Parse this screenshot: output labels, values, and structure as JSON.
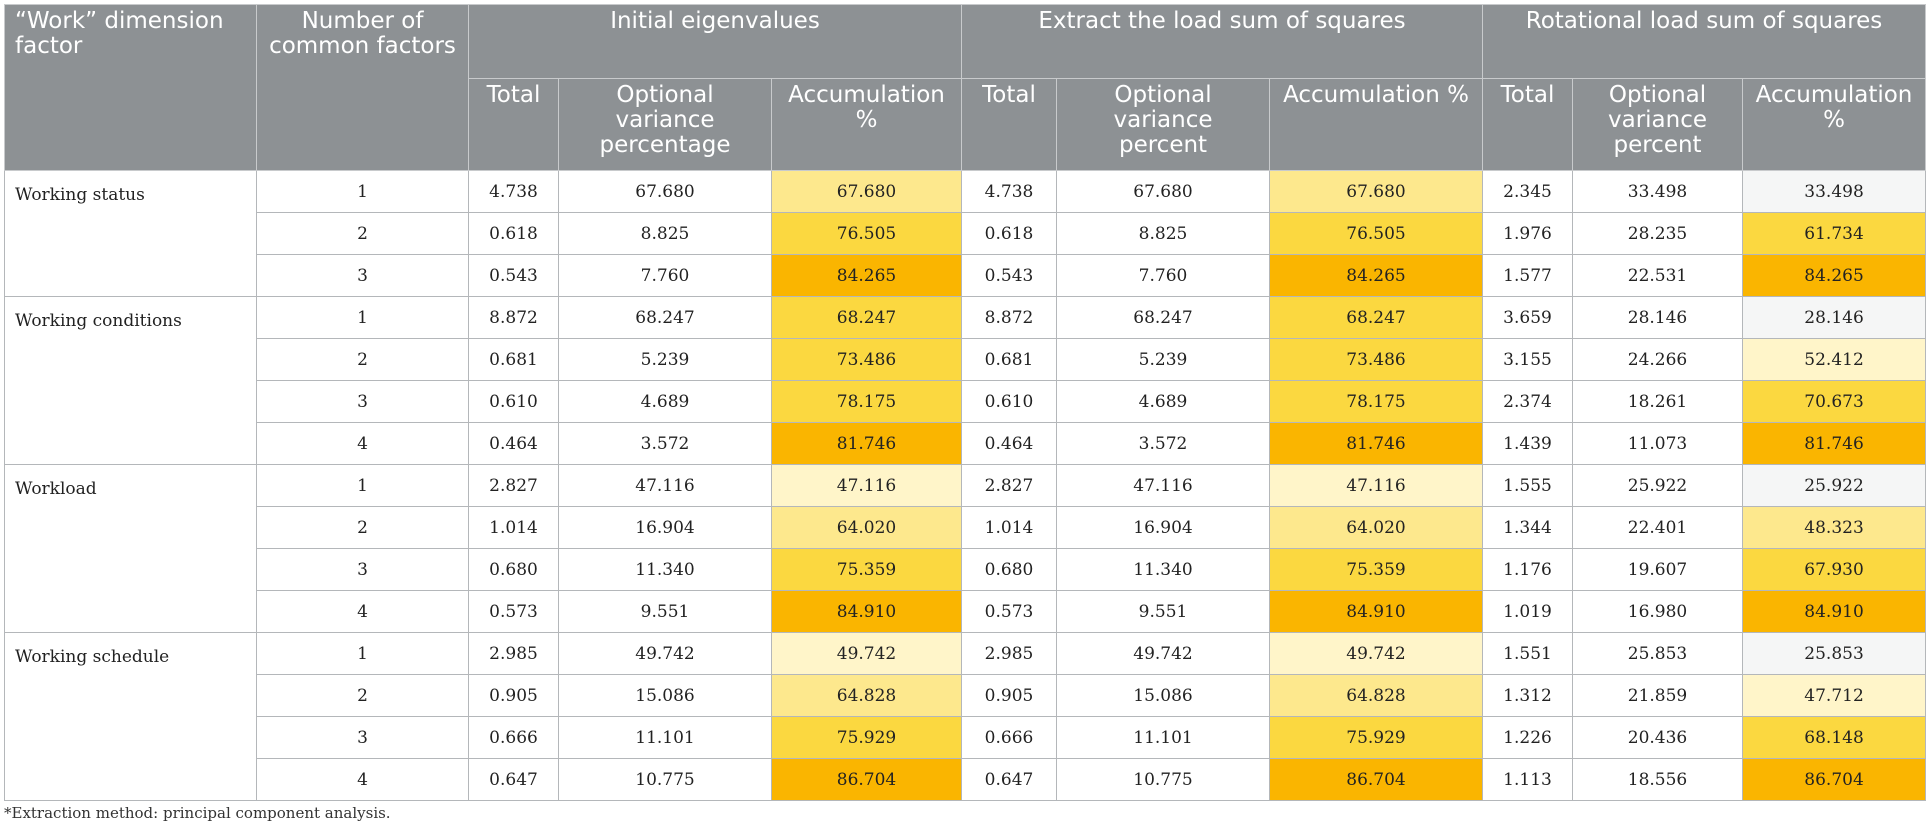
{
  "header": {
    "factor_col": "“Work” dimension factor",
    "number_col": "Number of common factors",
    "groups": [
      "Initial eigenvalues",
      "Extract the load sum of squares",
      "Rotational load sum of squares"
    ],
    "sub": [
      [
        "Total",
        "Optional variance percentage",
        "Accumulation %"
      ],
      [
        "Total",
        "Optional variance percent",
        "Accumulation %"
      ],
      [
        "Total",
        "Optional variance percent",
        "Accumulation %"
      ]
    ]
  },
  "colors": {
    "c0": "#f5f6f6",
    "c1": "#fff5c9",
    "c2": "#fde88d",
    "c3": "#fcdf5a",
    "c4": "#fbd840",
    "c5": "#fab500",
    "header_bg": "#8d9194"
  },
  "groups": [
    {
      "name": "Working status",
      "rows": [
        {
          "n": "1",
          "v": [
            "4.738",
            "67.680",
            "67.680",
            "4.738",
            "67.680",
            "67.680",
            "2.345",
            "33.498",
            "33.498"
          ],
          "shade": [
            "c2",
            "c2",
            "c0"
          ]
        },
        {
          "n": "2",
          "v": [
            "0.618",
            "8.825",
            "76.505",
            "0.618",
            "8.825",
            "76.505",
            "1.976",
            "28.235",
            "61.734"
          ],
          "shade": [
            "c4",
            "c4",
            "c4"
          ]
        },
        {
          "n": "3",
          "v": [
            "0.543",
            "7.760",
            "84.265",
            "0.543",
            "7.760",
            "84.265",
            "1.577",
            "22.531",
            "84.265"
          ],
          "shade": [
            "c5",
            "c5",
            "c5"
          ]
        }
      ]
    },
    {
      "name": "Working conditions",
      "rows": [
        {
          "n": "1",
          "v": [
            "8.872",
            "68.247",
            "68.247",
            "8.872",
            "68.247",
            "68.247",
            "3.659",
            "28.146",
            "28.146"
          ],
          "shade": [
            "c4",
            "c4",
            "c0"
          ]
        },
        {
          "n": "2",
          "v": [
            "0.681",
            "5.239",
            "73.486",
            "0.681",
            "5.239",
            "73.486",
            "3.155",
            "24.266",
            "52.412"
          ],
          "shade": [
            "c4",
            "c4",
            "c1"
          ]
        },
        {
          "n": "3",
          "v": [
            "0.610",
            "4.689",
            "78.175",
            "0.610",
            "4.689",
            "78.175",
            "2.374",
            "18.261",
            "70.673"
          ],
          "shade": [
            "c4",
            "c4",
            "c4"
          ]
        },
        {
          "n": "4",
          "v": [
            "0.464",
            "3.572",
            "81.746",
            "0.464",
            "3.572",
            "81.746",
            "1.439",
            "11.073",
            "81.746"
          ],
          "shade": [
            "c5",
            "c5",
            "c5"
          ]
        }
      ]
    },
    {
      "name": "Workload",
      "rows": [
        {
          "n": "1",
          "v": [
            "2.827",
            "47.116",
            "47.116",
            "2.827",
            "47.116",
            "47.116",
            "1.555",
            "25.922",
            "25.922"
          ],
          "shade": [
            "c1",
            "c1",
            "c0"
          ]
        },
        {
          "n": "2",
          "v": [
            "1.014",
            "16.904",
            "64.020",
            "1.014",
            "16.904",
            "64.020",
            "1.344",
            "22.401",
            "48.323"
          ],
          "shade": [
            "c2",
            "c2",
            "c2"
          ]
        },
        {
          "n": "3",
          "v": [
            "0.680",
            "11.340",
            "75.359",
            "0.680",
            "11.340",
            "75.359",
            "1.176",
            "19.607",
            "67.930"
          ],
          "shade": [
            "c4",
            "c4",
            "c4"
          ]
        },
        {
          "n": "4",
          "v": [
            "0.573",
            "9.551",
            "84.910",
            "0.573",
            "9.551",
            "84.910",
            "1.019",
            "16.980",
            "84.910"
          ],
          "shade": [
            "c5",
            "c5",
            "c5"
          ]
        }
      ]
    },
    {
      "name": "Working schedule",
      "rows": [
        {
          "n": "1",
          "v": [
            "2.985",
            "49.742",
            "49.742",
            "2.985",
            "49.742",
            "49.742",
            "1.551",
            "25.853",
            "25.853"
          ],
          "shade": [
            "c1",
            "c1",
            "c0"
          ]
        },
        {
          "n": "2",
          "v": [
            "0.905",
            "15.086",
            "64.828",
            "0.905",
            "15.086",
            "64.828",
            "1.312",
            "21.859",
            "47.712"
          ],
          "shade": [
            "c2",
            "c2",
            "c1"
          ]
        },
        {
          "n": "3",
          "v": [
            "0.666",
            "11.101",
            "75.929",
            "0.666",
            "11.101",
            "75.929",
            "1.226",
            "20.436",
            "68.148"
          ],
          "shade": [
            "c4",
            "c4",
            "c4"
          ]
        },
        {
          "n": "4",
          "v": [
            "0.647",
            "10.775",
            "86.704",
            "0.647",
            "10.775",
            "86.704",
            "1.113",
            "18.556",
            "86.704"
          ],
          "shade": [
            "c5",
            "c5",
            "c5"
          ]
        }
      ]
    }
  ],
  "footnote": "*Extraction method: principal component analysis."
}
